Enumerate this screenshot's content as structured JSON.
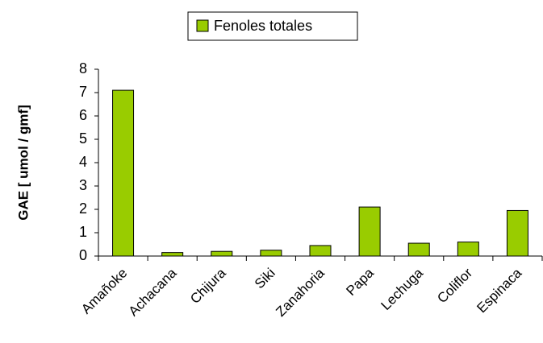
{
  "chart_data": {
    "type": "bar",
    "legend": "Fenoles totales",
    "ylabel": "GAE [ umol / gmf]",
    "categories": [
      "Amañoke",
      "Achacana",
      "Chijura",
      "Siki",
      "Zanahoria",
      "Papa",
      "Lechuga",
      "Coliflor",
      "Espinaca"
    ],
    "values": [
      7.1,
      0.15,
      0.2,
      0.25,
      0.45,
      2.1,
      0.55,
      0.6,
      1.95
    ],
    "color": "#99cc00",
    "ylim": [
      0,
      8
    ],
    "yticks": [
      0,
      1,
      2,
      3,
      4,
      5,
      6,
      7,
      8
    ],
    "grid": false,
    "legend_position": "top"
  }
}
